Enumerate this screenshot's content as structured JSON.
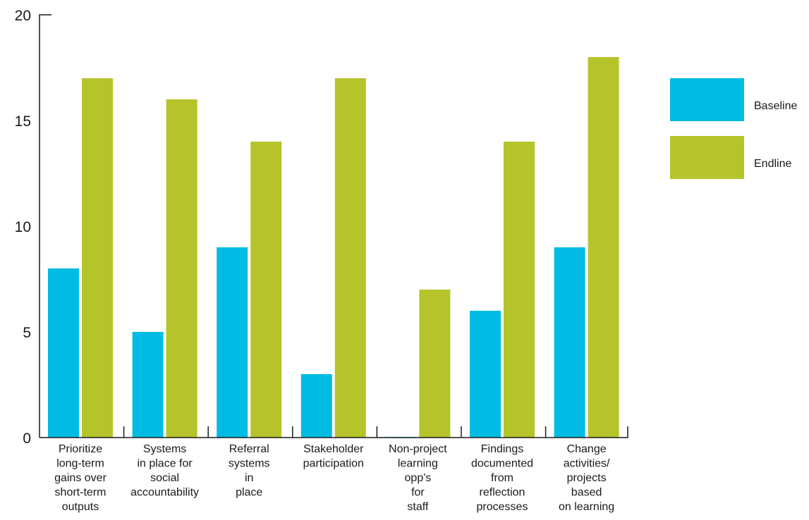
{
  "chart_data": {
    "type": "bar",
    "title": "",
    "xlabel": "",
    "ylabel": "",
    "ylim": [
      0,
      20
    ],
    "yticks": [
      0,
      5,
      10,
      15,
      20
    ],
    "grid": false,
    "legend_position": "right",
    "categories": [
      [
        "Prioritize",
        "long-term",
        "gains over",
        "short-term",
        "outputs"
      ],
      [
        "Systems",
        "in place for",
        "social",
        "accountability"
      ],
      [
        "Referral",
        "systems",
        "in",
        "place"
      ],
      [
        "Stakeholder",
        "participation"
      ],
      [
        "Non-project",
        "learning",
        "opp's",
        "for",
        "staff"
      ],
      [
        "Findings",
        "documented",
        "from",
        "reflection",
        "processes"
      ],
      [
        "Change",
        "activities/",
        "projects",
        "based",
        "on learning"
      ]
    ],
    "series": [
      {
        "name": "Baseline",
        "color": "#00bce4",
        "values": [
          8,
          5,
          9,
          3,
          0,
          6,
          9
        ]
      },
      {
        "name": "Endline",
        "color": "#b5c42a",
        "values": [
          17,
          16,
          14,
          17,
          7,
          14,
          18
        ]
      }
    ]
  }
}
